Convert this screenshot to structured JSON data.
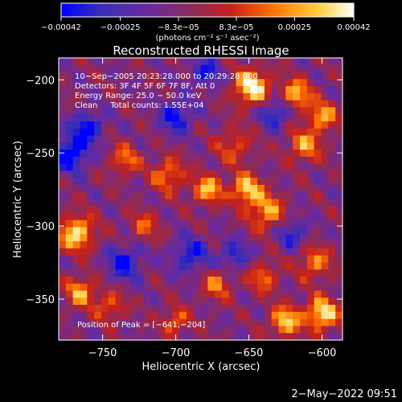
{
  "chart_data": {
    "type": "heatmap",
    "title": "Reconstructed RHESSI Image",
    "xlabel": "Heliocentric X (arcsec)",
    "ylabel": "Heliocentric Y (arcsec)",
    "xlim": [
      -780,
      -586
    ],
    "ylim": [
      -378,
      -185
    ],
    "x_ticks": [
      -750,
      -700,
      -650,
      -600
    ],
    "y_ticks": [
      -200,
      -250,
      -300,
      -350
    ],
    "x_tick_labels": [
      "−750",
      "−700",
      "−650",
      "−600"
    ],
    "y_tick_labels": [
      "−200",
      "−250",
      "−300",
      "−350"
    ],
    "colorbar": {
      "range": [
        -0.00042,
        0.00042
      ],
      "ticks": [
        -0.00042,
        -0.00025,
        -8.3e-05,
        8.3e-05,
        0.00025,
        0.00042
      ],
      "tick_labels": [
        "−0.00042",
        "−0.00025",
        "−8.3e−05",
        "8.3e−05",
        "0.00025",
        "0.00042"
      ],
      "units": "(photons cm⁻² s⁻¹ asec⁻²)"
    },
    "colormap": [
      "#0000ff",
      "#3a2fb4",
      "#6a2aa0",
      "#8c2a5a",
      "#c8201a",
      "#ff7000",
      "#ffd040",
      "#ffffff"
    ],
    "annotations": [
      "10−Sep−2005 20:23:28.000 to 20:29:28.000",
      "Detectors: 3F 4F 5F 6F 7F 8F, Att 0",
      "Energy Range: 25.0 − 50.0 keV",
      "Clean     Total counts: 1.55E+04"
    ],
    "peak_label": "Position of Peak = [−641,−204]",
    "peak": {
      "x": -641,
      "y": -204
    },
    "intensity_blobs": [
      {
        "x": -648,
        "y": -205,
        "v": 1.0,
        "r": 12
      },
      {
        "x": -618,
        "y": -210,
        "v": 0.8,
        "r": 10
      },
      {
        "x": -600,
        "y": -225,
        "v": 0.7,
        "r": 10
      },
      {
        "x": -612,
        "y": -245,
        "v": 0.65,
        "r": 11
      },
      {
        "x": -660,
        "y": -245,
        "v": 0.45,
        "r": 12
      },
      {
        "x": -678,
        "y": -275,
        "v": 0.75,
        "r": 10
      },
      {
        "x": -652,
        "y": -275,
        "v": 0.85,
        "r": 10
      },
      {
        "x": -638,
        "y": -290,
        "v": 0.7,
        "r": 12
      },
      {
        "x": -705,
        "y": -265,
        "v": 0.6,
        "r": 11
      },
      {
        "x": -735,
        "y": -255,
        "v": 0.55,
        "r": 10
      },
      {
        "x": -722,
        "y": -300,
        "v": 0.45,
        "r": 10
      },
      {
        "x": -768,
        "y": -305,
        "v": 0.9,
        "r": 12
      },
      {
        "x": -765,
        "y": -345,
        "v": 0.7,
        "r": 10
      },
      {
        "x": -745,
        "y": -355,
        "v": 0.5,
        "r": 10
      },
      {
        "x": -700,
        "y": -365,
        "v": 0.55,
        "r": 9
      },
      {
        "x": -672,
        "y": -340,
        "v": 0.55,
        "r": 10
      },
      {
        "x": -640,
        "y": -335,
        "v": 0.55,
        "r": 10
      },
      {
        "x": -605,
        "y": -325,
        "v": 0.6,
        "r": 11
      },
      {
        "x": -600,
        "y": -360,
        "v": 0.95,
        "r": 11
      },
      {
        "x": -625,
        "y": -365,
        "v": 0.85,
        "r": 10
      },
      {
        "x": -700,
        "y": -225,
        "v": -0.6,
        "r": 11
      },
      {
        "x": -772,
        "y": -250,
        "v": -0.8,
        "r": 12
      },
      {
        "x": -760,
        "y": -232,
        "v": -0.65,
        "r": 10
      },
      {
        "x": -735,
        "y": -325,
        "v": -0.6,
        "r": 12
      },
      {
        "x": -690,
        "y": -320,
        "v": -0.55,
        "r": 12
      },
      {
        "x": -660,
        "y": -320,
        "v": -0.5,
        "r": 10
      },
      {
        "x": -620,
        "y": -305,
        "v": -0.5,
        "r": 10
      },
      {
        "x": -632,
        "y": -222,
        "v": -0.6,
        "r": 10
      },
      {
        "x": -680,
        "y": -195,
        "v": -0.55,
        "r": 10
      }
    ]
  },
  "footer": {
    "date": "2−May−2022 09:51"
  }
}
